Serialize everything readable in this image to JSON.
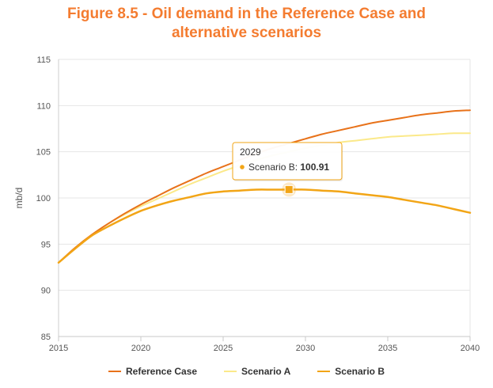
{
  "title_line1": "Figure 8.5 - Oil demand in the Reference Case and",
  "title_line2": "alternative scenarios",
  "chart_data": {
    "type": "line",
    "ylabel": "mb/d",
    "xlim": [
      2015,
      2040
    ],
    "ylim": [
      85,
      115
    ],
    "x_ticks": [
      2015,
      2020,
      2025,
      2030,
      2035,
      2040
    ],
    "y_ticks": [
      85,
      90,
      95,
      100,
      105,
      110,
      115
    ],
    "grid": true,
    "legend_position": "bottom",
    "x": [
      2015,
      2016,
      2017,
      2018,
      2019,
      2020,
      2021,
      2022,
      2023,
      2024,
      2025,
      2026,
      2027,
      2028,
      2029,
      2030,
      2031,
      2032,
      2033,
      2034,
      2035,
      2036,
      2037,
      2038,
      2039,
      2040
    ],
    "series": [
      {
        "name": "Reference Case",
        "color": "#e8721a",
        "values": [
          93.0,
          94.6,
          96.0,
          97.2,
          98.3,
          99.3,
          100.2,
          101.1,
          101.9,
          102.7,
          103.4,
          104.1,
          104.8,
          105.4,
          105.9,
          106.4,
          106.9,
          107.3,
          107.7,
          108.1,
          108.4,
          108.7,
          109.0,
          109.2,
          109.4,
          109.5
        ]
      },
      {
        "name": "Scenario A",
        "color": "#fbe98a",
        "values": [
          93.0,
          94.6,
          96.0,
          97.2,
          98.2,
          99.1,
          99.9,
          100.7,
          101.5,
          102.2,
          102.9,
          103.5,
          104.1,
          104.6,
          105.0,
          105.4,
          105.7,
          106.0,
          106.2,
          106.4,
          106.6,
          106.7,
          106.8,
          106.9,
          107.0,
          107.0
        ]
      },
      {
        "name": "Scenario B",
        "color": "#f2a516",
        "values": [
          93.0,
          94.5,
          95.9,
          96.9,
          97.8,
          98.6,
          99.2,
          99.7,
          100.1,
          100.5,
          100.7,
          100.8,
          100.9,
          100.9,
          100.91,
          100.9,
          100.8,
          100.7,
          100.5,
          100.3,
          100.1,
          99.8,
          99.5,
          99.2,
          98.8,
          98.4
        ]
      }
    ],
    "tooltip": {
      "x": 2029,
      "header": "2029",
      "series_label": "Scenario B:",
      "value": "100.91",
      "series_index": 2
    }
  }
}
